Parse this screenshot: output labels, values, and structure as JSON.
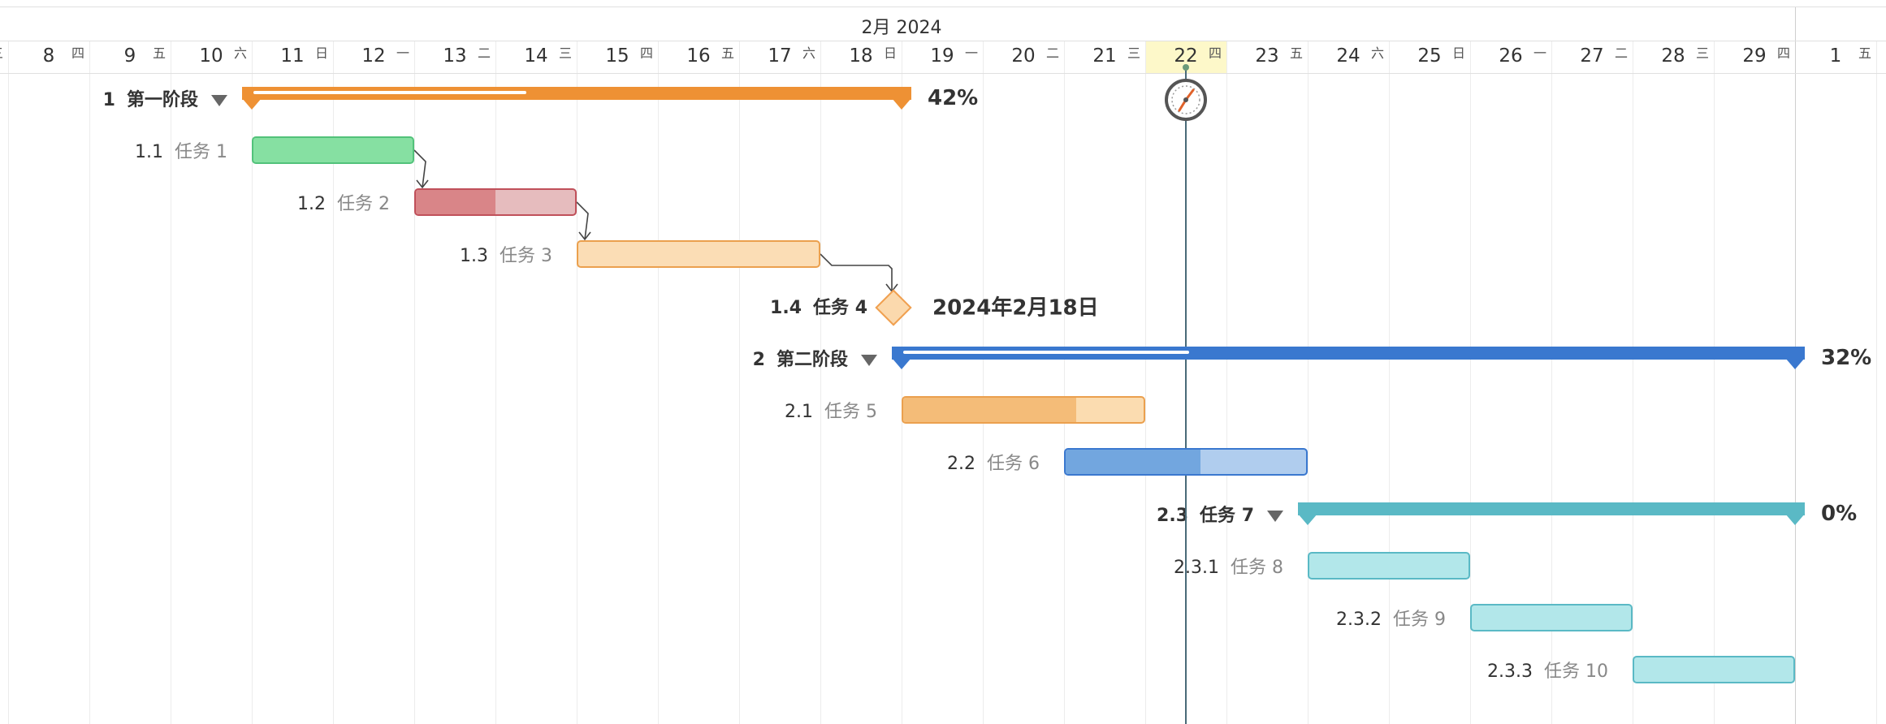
{
  "header": {
    "month_label": "2月 2024"
  },
  "days": [
    {
      "day": "",
      "weekday": "三"
    },
    {
      "day": "8",
      "weekday": "四"
    },
    {
      "day": "9",
      "weekday": "五"
    },
    {
      "day": "10",
      "weekday": "六"
    },
    {
      "day": "11",
      "weekday": "日"
    },
    {
      "day": "12",
      "weekday": "一"
    },
    {
      "day": "13",
      "weekday": "二"
    },
    {
      "day": "14",
      "weekday": "三"
    },
    {
      "day": "15",
      "weekday": "四"
    },
    {
      "day": "16",
      "weekday": "五"
    },
    {
      "day": "17",
      "weekday": "六"
    },
    {
      "day": "18",
      "weekday": "日"
    },
    {
      "day": "19",
      "weekday": "一"
    },
    {
      "day": "20",
      "weekday": "二"
    },
    {
      "day": "21",
      "weekday": "三"
    },
    {
      "day": "22",
      "weekday": "四"
    },
    {
      "day": "23",
      "weekday": "五"
    },
    {
      "day": "24",
      "weekday": "六"
    },
    {
      "day": "25",
      "weekday": "日"
    },
    {
      "day": "26",
      "weekday": "一"
    },
    {
      "day": "27",
      "weekday": "二"
    },
    {
      "day": "28",
      "weekday": "三"
    },
    {
      "day": "29",
      "weekday": "四"
    },
    {
      "day": "1",
      "weekday": "五"
    }
  ],
  "today_day": "22",
  "tasks": [
    {
      "wbs": "1",
      "name": "第一阶段",
      "type": "summary",
      "start": "11",
      "end": "18",
      "progress": 42,
      "progress_label": "42%",
      "color": "#ee9134",
      "collapsible": true
    },
    {
      "wbs": "1.1",
      "name": "任务 1",
      "type": "task",
      "start": "11",
      "end": "12",
      "progress": 100,
      "color": "#86e0a2",
      "fill": "#86e0a2",
      "border": "#52c27a"
    },
    {
      "wbs": "1.2",
      "name": "任务 2",
      "type": "task",
      "start": "13",
      "end": "14",
      "progress": 50,
      "color": "#e6bcbe",
      "fill": "#d98588",
      "border": "#c0505a"
    },
    {
      "wbs": "1.3",
      "name": "任务 3",
      "type": "task",
      "start": "15",
      "end": "17",
      "progress": 0,
      "color": "#fbddb5",
      "fill": "#f3b874",
      "border": "#eba04e"
    },
    {
      "wbs": "1.4",
      "name": "任务 4",
      "type": "milestone",
      "start": "18",
      "date_label": "2024年2月18日"
    },
    {
      "wbs": "2",
      "name": "第二阶段",
      "type": "summary",
      "start": "19",
      "end": "29",
      "progress": 32,
      "progress_label": "32%",
      "color": "#3a78cf",
      "collapsible": true
    },
    {
      "wbs": "2.1",
      "name": "任务 5",
      "type": "task",
      "start": "19",
      "end": "21",
      "progress": 72,
      "color": "#fbdcb0",
      "fill": "#f4bc78",
      "border": "#eba04e"
    },
    {
      "wbs": "2.2",
      "name": "任务 6",
      "type": "task",
      "start": "21",
      "end": "23",
      "progress": 56,
      "color": "#b0cdee",
      "fill": "#72a6df",
      "border": "#3a78cf"
    },
    {
      "wbs": "2.3",
      "name": "任务 7",
      "type": "summary",
      "start": "24",
      "end": "29",
      "progress": 0,
      "progress_label": "0%",
      "color": "#5ab9c5",
      "collapsible": true
    },
    {
      "wbs": "2.3.1",
      "name": "任务 8",
      "type": "task",
      "start": "24",
      "end": "25",
      "progress": 0,
      "color": "#b2e7ea",
      "fill": "#b2e7ea",
      "border": "#5ab9c5"
    },
    {
      "wbs": "2.3.2",
      "name": "任务 9",
      "type": "task",
      "start": "26",
      "end": "27",
      "progress": 0,
      "color": "#b2e7ea",
      "fill": "#b2e7ea",
      "border": "#5ab9c5"
    },
    {
      "wbs": "2.3.3",
      "name": "任务 10",
      "type": "task",
      "start": "28",
      "end": "29",
      "progress": 0,
      "color": "#b2e7ea",
      "fill": "#b2e7ea",
      "border": "#5ab9c5"
    }
  ],
  "links": [
    {
      "from": "1.1",
      "to": "1.2"
    },
    {
      "from": "1.2",
      "to": "1.3"
    },
    {
      "from": "1.3",
      "to": "1.4"
    }
  ],
  "colors": {
    "today_line": "#4a6a78",
    "link": "#444444",
    "grid": "#ececec",
    "today_bg": "#fdf8c9",
    "clock_hand": "#e0622a"
  },
  "icons": {
    "today_marker": "clock-icon",
    "collapse": "caret-down-icon"
  }
}
